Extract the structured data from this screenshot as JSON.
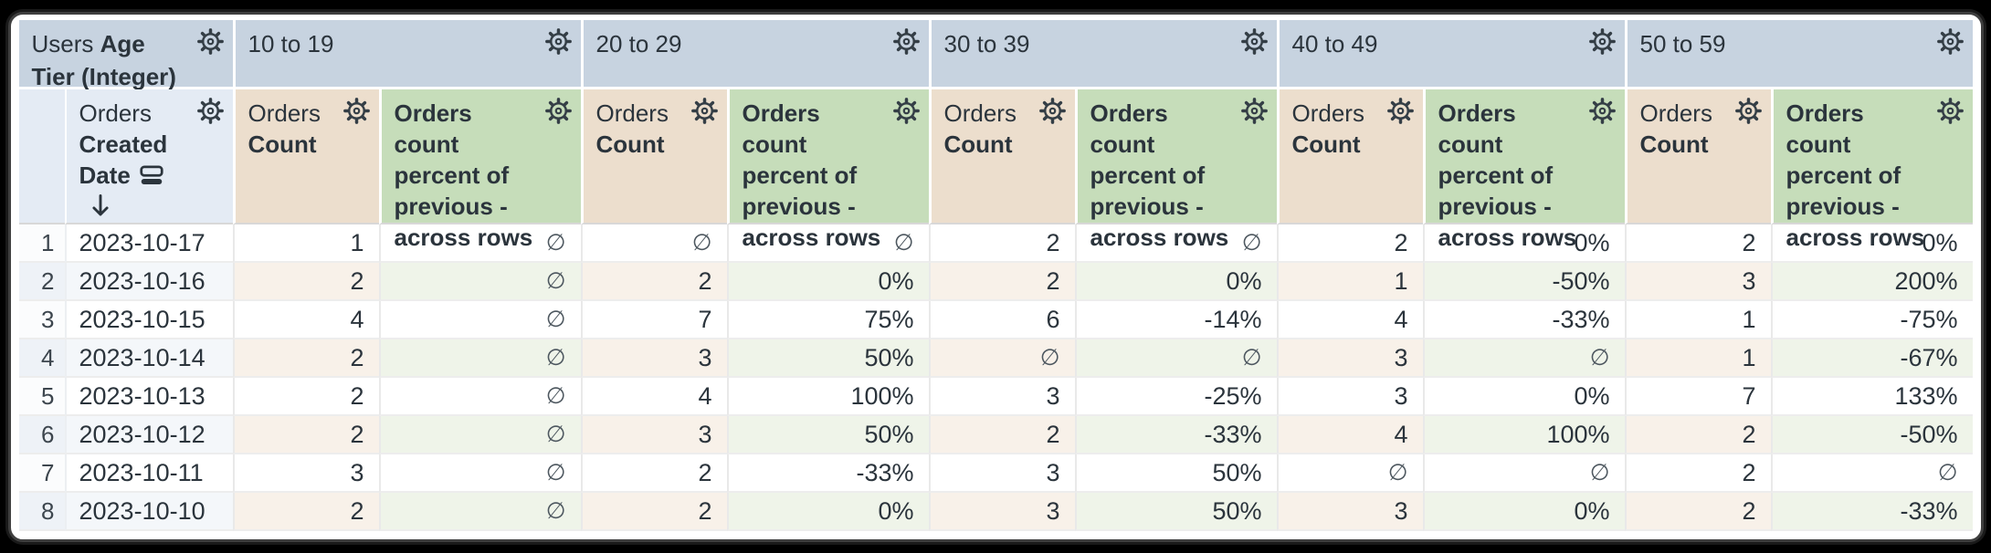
{
  "table": {
    "corner": {
      "view": "Users",
      "field": "Age Tier (Integer)"
    },
    "row_dimension": {
      "view": "Orders",
      "field": "Created Date"
    },
    "pivot_groups": [
      "10 to 19",
      "20 to 29",
      "30 to 39",
      "40 to 49",
      "50 to 59"
    ],
    "measure": {
      "view": "Orders",
      "field": "Count"
    },
    "calc_label": "Orders count percent of previous - across rows",
    "null_symbol": "∅",
    "sort": {
      "column": "Orders Created Date",
      "direction": "descending"
    },
    "rows": [
      {
        "index": "1",
        "date": "2023-10-17",
        "cells": [
          "1",
          "∅",
          "∅",
          "∅",
          "2",
          "∅",
          "2",
          "0%",
          "2",
          "0%"
        ]
      },
      {
        "index": "2",
        "date": "2023-10-16",
        "cells": [
          "2",
          "∅",
          "2",
          "0%",
          "2",
          "0%",
          "1",
          "-50%",
          "3",
          "200%"
        ]
      },
      {
        "index": "3",
        "date": "2023-10-15",
        "cells": [
          "4",
          "∅",
          "7",
          "75%",
          "6",
          "-14%",
          "4",
          "-33%",
          "1",
          "-75%"
        ]
      },
      {
        "index": "4",
        "date": "2023-10-14",
        "cells": [
          "2",
          "∅",
          "3",
          "50%",
          "∅",
          "∅",
          "3",
          "∅",
          "1",
          "-67%"
        ]
      },
      {
        "index": "5",
        "date": "2023-10-13",
        "cells": [
          "2",
          "∅",
          "4",
          "100%",
          "3",
          "-25%",
          "3",
          "0%",
          "7",
          "133%"
        ]
      },
      {
        "index": "6",
        "date": "2023-10-12",
        "cells": [
          "2",
          "∅",
          "3",
          "50%",
          "2",
          "-33%",
          "4",
          "100%",
          "2",
          "-50%"
        ]
      },
      {
        "index": "7",
        "date": "2023-10-11",
        "cells": [
          "3",
          "∅",
          "2",
          "-33%",
          "3",
          "50%",
          "∅",
          "∅",
          "2",
          "∅"
        ]
      },
      {
        "index": "8",
        "date": "2023-10-10",
        "cells": [
          "2",
          "∅",
          "2",
          "0%",
          "3",
          "50%",
          "3",
          "0%",
          "2",
          "-33%"
        ]
      }
    ]
  },
  "icons": {
    "gear": "settings-gear",
    "subtotal": "subtotal-sort",
    "arrow_down": "sort-descending-arrow",
    "chevron": "expand-pivot-chevron"
  },
  "colors": {
    "pivot_header_bg": "#c7d3e0",
    "dimension_header_bg": "#e4ebf4",
    "measure_header_bg": "#ecdecd",
    "calc_header_bg": "#c6ddba",
    "even_row_dimension_bg": "#f4f7fa",
    "even_row_measure_bg": "#f8f1e9",
    "even_row_calc_bg": "#eff4e9",
    "text": "#2b343c",
    "null_text": "#4d575f"
  }
}
